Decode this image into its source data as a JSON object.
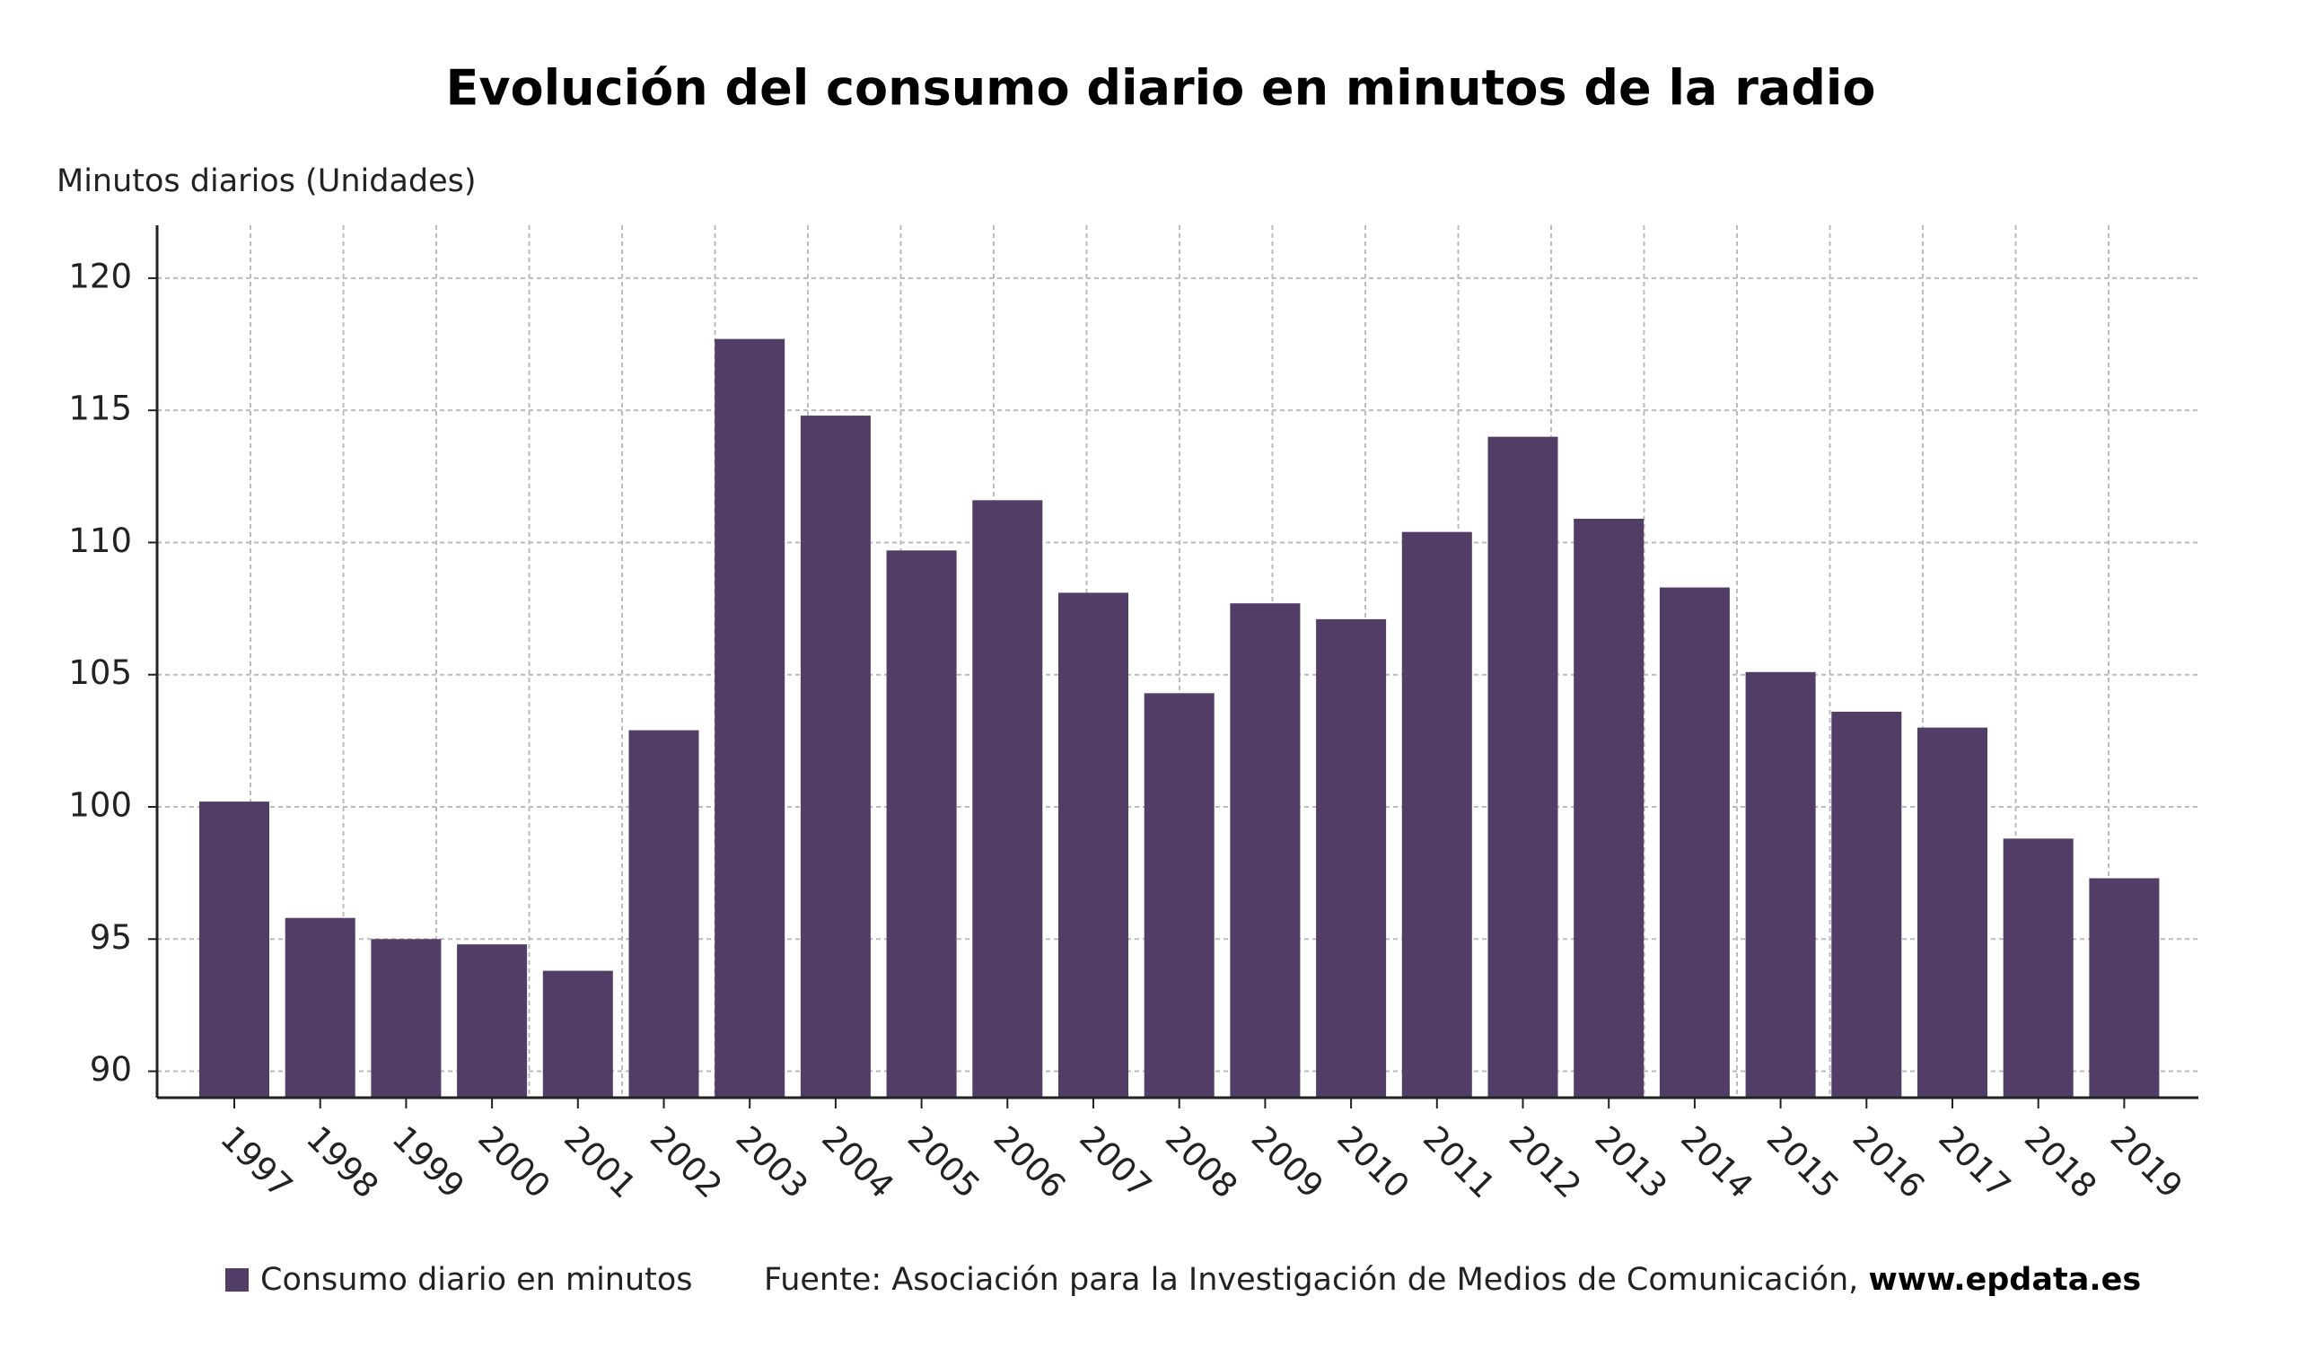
{
  "chart_data": {
    "type": "bar",
    "title": "Evolución del consumo diario en minutos de la radio",
    "y_label": "Minutos diarios (Unidades)",
    "categories": [
      "1997",
      "1998",
      "1999",
      "2000",
      "2001",
      "2002",
      "2003",
      "2004",
      "2005",
      "2006",
      "2007",
      "2008",
      "2009",
      "2010",
      "2011",
      "2012",
      "2013",
      "2014",
      "2015",
      "2016",
      "2017",
      "2018",
      "2019"
    ],
    "series": [
      {
        "name": "Consumo diario en minutos",
        "color": "#513d66",
        "values": [
          100.2,
          95.8,
          95.0,
          94.8,
          93.8,
          102.9,
          117.7,
          114.8,
          109.7,
          111.6,
          108.1,
          104.3,
          107.7,
          107.1,
          110.4,
          114.0,
          110.9,
          108.3,
          105.1,
          103.6,
          103.0,
          98.8,
          97.3
        ]
      }
    ],
    "ylim": [
      89,
      122
    ],
    "yticks": [
      90,
      95,
      100,
      105,
      110,
      115,
      120
    ],
    "grid": true,
    "legend": "bottom",
    "source": "Fuente: Asociación para la Investigación de Medios de Comunicación,",
    "source_link": "www.epdata.es"
  }
}
